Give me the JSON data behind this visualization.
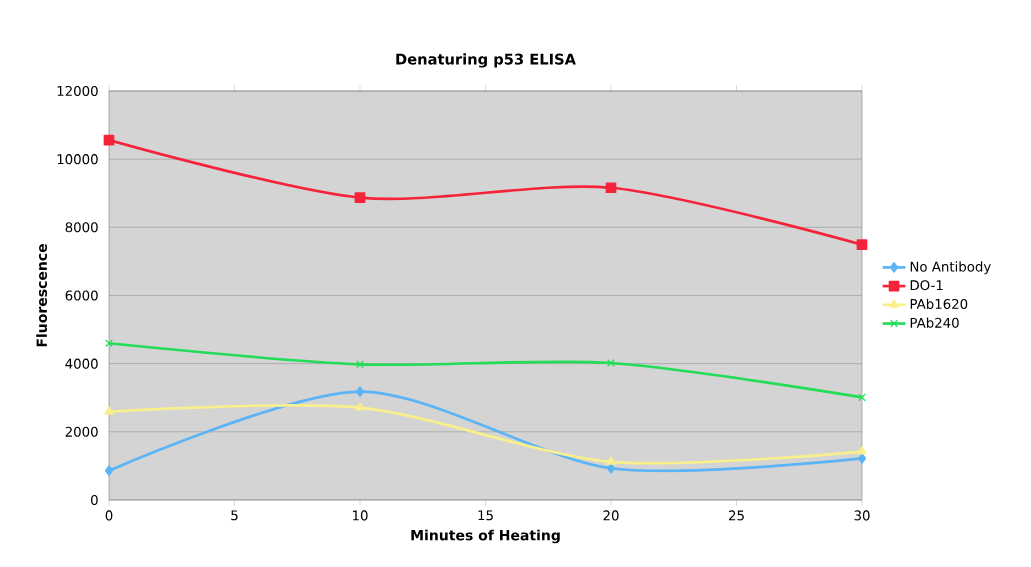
{
  "chart_data": {
    "type": "line",
    "title": "Denaturing p53 ELISA",
    "xlabel": "Minutes of Heating",
    "ylabel": "Fluorescence",
    "x": [
      0,
      10,
      20,
      30
    ],
    "xlim": [
      0,
      30
    ],
    "xticks": [
      0,
      5,
      10,
      15,
      20,
      25,
      30
    ],
    "ylim": [
      0,
      12000
    ],
    "yticks": [
      0,
      2000,
      4000,
      6000,
      8000,
      10000,
      12000
    ],
    "grid": "y",
    "legend": "right",
    "line_style": "solid",
    "series": [
      {
        "name": "No Antibody",
        "color": "#5ab4f5",
        "marker": "diamond",
        "values": [
          860,
          3180,
          930,
          1220
        ]
      },
      {
        "name": "DO-1",
        "color": "#f5243a",
        "marker": "square",
        "values": [
          10560,
          8870,
          9160,
          7490
        ]
      },
      {
        "name": "PAb1620",
        "color": "#f8f08c",
        "marker": "triangle",
        "values": [
          2590,
          2710,
          1120,
          1420
        ]
      },
      {
        "name": "PAb240",
        "color": "#22dd55",
        "marker": "cross",
        "values": [
          4600,
          3980,
          4020,
          3010
        ]
      }
    ]
  }
}
